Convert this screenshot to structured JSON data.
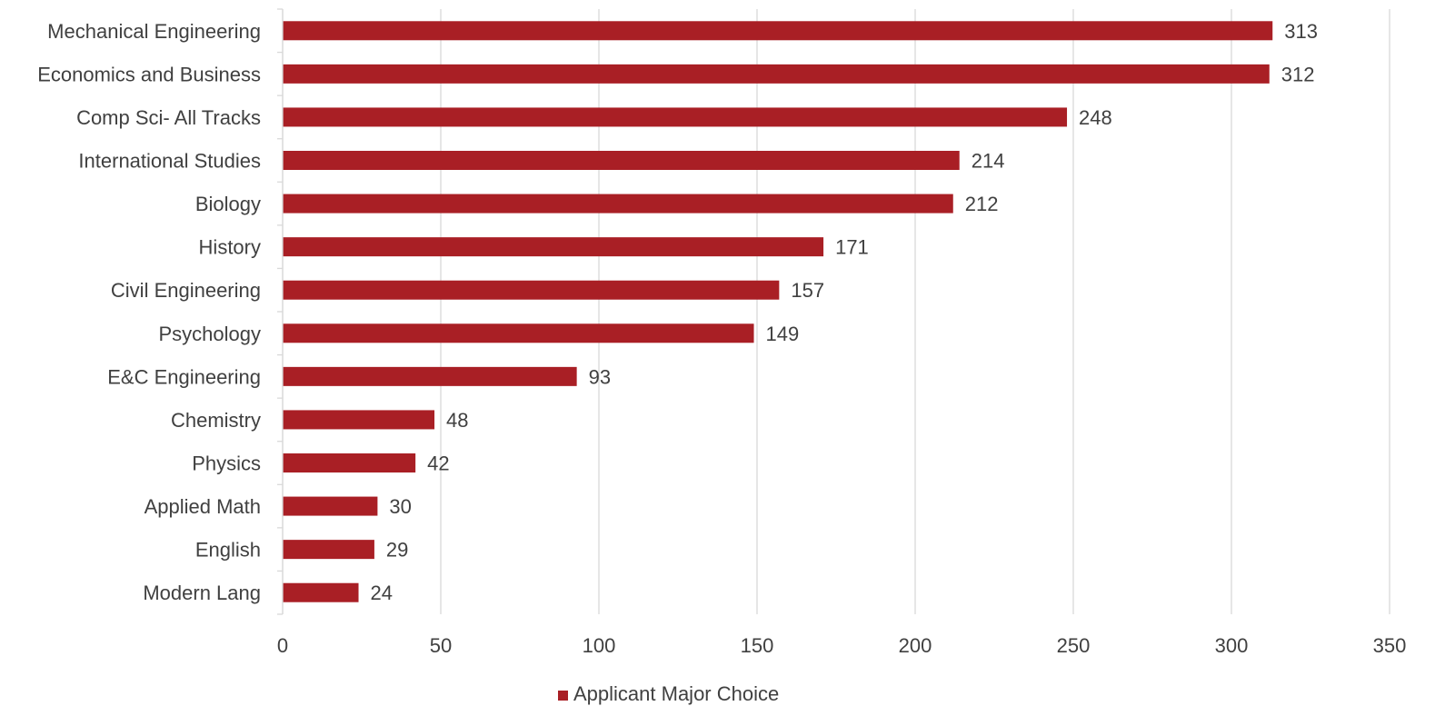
{
  "chart_data": {
    "type": "bar",
    "orientation": "horizontal",
    "categories": [
      "Mechanical Engineering",
      "Economics and Business",
      "Comp Sci- All Tracks",
      "International Studies",
      "Biology",
      "History",
      "Civil Engineering",
      "Psychology",
      "E&C Engineering",
      "Chemistry",
      "Physics",
      "Applied Math",
      "English",
      "Modern Lang"
    ],
    "series": [
      {
        "name": "Applicant Major Choice",
        "values": [
          313,
          312,
          248,
          214,
          212,
          171,
          157,
          149,
          93,
          48,
          42,
          30,
          29,
          24
        ],
        "color": "#A91F25"
      }
    ],
    "title": "",
    "xlabel": "",
    "ylabel": "",
    "xlim": [
      0,
      350
    ],
    "xticks": [
      0,
      50,
      100,
      150,
      200,
      250,
      300,
      350
    ],
    "grid": "vertical",
    "legend": "bottom-center",
    "data_labels": true,
    "gridline_color": "#D9D9D9",
    "text_color": "#404040"
  }
}
